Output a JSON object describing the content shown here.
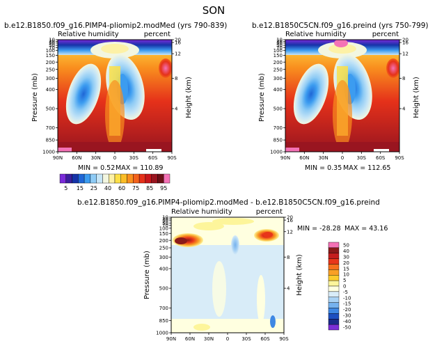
{
  "page_title": "SON",
  "chart_data": [
    {
      "type": "heatmap",
      "title": "b.e12.B1850.f09_g16.PIMP4-pliomip2.modMed (yrs 790-839)",
      "left_label": "Relative humidity",
      "right_label": "percent",
      "ylabel": "Pressure (mb)",
      "y2label": "Height (km)",
      "x_ticks": [
        "90N",
        "60N",
        "30N",
        "0",
        "30S",
        "60S",
        "90S"
      ],
      "y_ticks": [
        "1000",
        "850",
        "700",
        "500",
        "400",
        "300",
        "250",
        "200",
        "150",
        "100",
        "70",
        "50",
        "30",
        "20",
        "10"
      ],
      "y2_ticks": [
        "4",
        "8",
        "12",
        "16",
        "20"
      ],
      "min_label": "MIN = 0.52",
      "max_label": "MAX = 110.89",
      "min": 0.52,
      "max": 110.89
    },
    {
      "type": "heatmap",
      "title": "b.e12.B1850C5CN.f09_g16.preind (yrs 750-799)",
      "left_label": "Relative humidity",
      "right_label": "percent",
      "ylabel": "Pressure (mb)",
      "y2label": "Height (km)",
      "x_ticks": [
        "90N",
        "60N",
        "30N",
        "0",
        "30S",
        "60S",
        "90S"
      ],
      "y_ticks": [
        "1000",
        "850",
        "700",
        "500",
        "400",
        "300",
        "250",
        "200",
        "150",
        "100",
        "70",
        "50",
        "30",
        "20",
        "10"
      ],
      "y2_ticks": [
        "4",
        "8",
        "12",
        "16",
        "20"
      ],
      "min_label": "MIN = 0.35",
      "max_label": "MAX = 112.65",
      "min": 0.35,
      "max": 112.65
    },
    {
      "type": "heatmap",
      "title": "b.e12.B1850.f09_g16.PIMP4-pliomip2.modMed - b.e12.B1850C5CN.f09_g16.preind",
      "left_label": "Relative humidity",
      "right_label": "percent",
      "ylabel": "Pressure (mb)",
      "y2label": "Height (km)",
      "x_ticks": [
        "90N",
        "60N",
        "30N",
        "0",
        "30S",
        "60S",
        "90S"
      ],
      "y_ticks": [
        "1000",
        "850",
        "700",
        "500",
        "400",
        "300",
        "250",
        "200",
        "150",
        "100",
        "70",
        "50",
        "30",
        "20",
        "10"
      ],
      "y2_ticks": [
        "4",
        "8",
        "12",
        "16",
        "20"
      ],
      "min_label": "MIN = -28.28",
      "max_label": "MAX = 43.16",
      "min": -28.28,
      "max": 43.16
    }
  ],
  "colorbar_top": {
    "labels": [
      "5",
      "15",
      "25",
      "40",
      "60",
      "75",
      "85",
      "95"
    ],
    "colors": [
      "#7a2bd9",
      "#3b1f9e",
      "#1633a8",
      "#1f66d6",
      "#3c9cf0",
      "#8ecbf5",
      "#c6e5f6",
      "#f2f6e0",
      "#fdf1a6",
      "#fde047",
      "#fbbd27",
      "#f98f1e",
      "#f3621b",
      "#e5311a",
      "#c8171c",
      "#991520",
      "#6b1018",
      "#f472b6"
    ]
  },
  "colorbar_diff": {
    "labels": [
      "50",
      "40",
      "30",
      "20",
      "15",
      "10",
      "5",
      "0",
      "-5",
      "-10",
      "-15",
      "-20",
      "-30",
      "-40",
      "-50"
    ],
    "colors": [
      "#f472b6",
      "#8b1a1a",
      "#c41e1e",
      "#e8361a",
      "#f5701c",
      "#f9a026",
      "#fbcb2d",
      "#fdf59b",
      "#ffffe0",
      "#d8ecf8",
      "#a9d2f4",
      "#76b2ee",
      "#3f88e3",
      "#1d4fc0",
      "#1a2a8a",
      "#7b2ed6"
    ]
  }
}
